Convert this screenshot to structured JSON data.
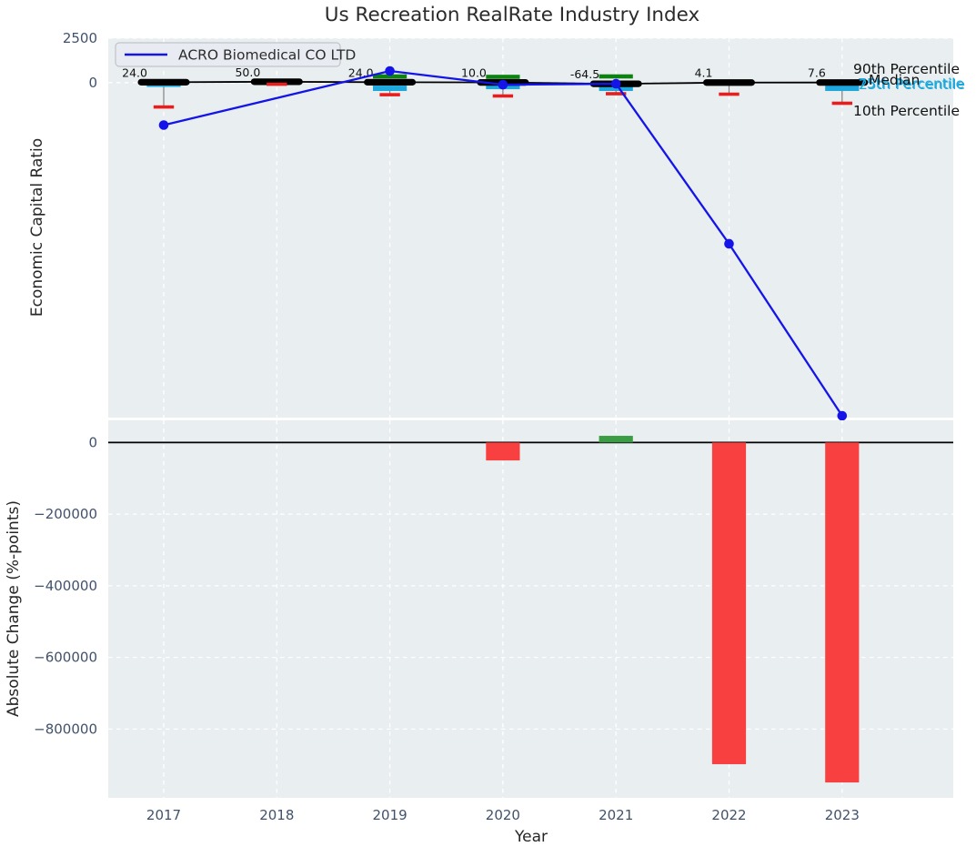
{
  "chart_data": [
    {
      "type": "line",
      "title": "Us Recreation RealRate Industry Index",
      "ylabel": "Economic Capital Ratio",
      "ytick_labels": [
        "2500",
        "0"
      ],
      "ytick_values": [
        2500,
        0
      ],
      "ylim": [
        -18850,
        2500
      ],
      "grid": true,
      "legend_position": "upper left",
      "legend": {
        "label": "ACRO Biomedical CO LTD"
      },
      "years": [
        2017,
        2018,
        2019,
        2020,
        2021,
        2022,
        2023
      ],
      "series": [
        {
          "name": "ACRO Biomedical CO LTD",
          "type": "line+markers",
          "color_key": "company_blue",
          "values": [
            -2390,
            null,
            655,
            -115,
            -64.5,
            -9070,
            -18750
          ]
        }
      ],
      "industry_percentiles": {
        "median_labels": [
          "24.0",
          "50.0",
          "24.0",
          "10.0",
          "-64.5",
          "4.1",
          "7.6"
        ],
        "median": [
          24.0,
          50.0,
          24.0,
          10.0,
          -64.5,
          4.1,
          7.6
        ],
        "p90": [
          null,
          null,
          350,
          325,
          350,
          null,
          null
        ],
        "p75": [
          -90,
          null,
          -165,
          -60,
          -110,
          null,
          -110
        ],
        "p25": [
          -240,
          null,
          -470,
          -370,
          -470,
          null,
          -470
        ],
        "p10": [
          -1370,
          -90,
          -680,
          -750,
          -625,
          -650,
          -1160
        ]
      },
      "annotations": [
        {
          "text": "90th Percentile",
          "color": "#111111"
        },
        {
          "text": "Median",
          "color": "#111111"
        },
        {
          "text": "75th Percentile",
          "color": "#1ea8dc"
        },
        {
          "text": "25th Percentile",
          "color": "#1ea8dc"
        },
        {
          "text": "10th Percentile",
          "color": "#111111"
        }
      ]
    },
    {
      "type": "bar",
      "ylabel": "Absolute Change (%-points)",
      "xlabel": "Year",
      "ytick_labels": [
        "0",
        "−200000",
        "−400000",
        "−600000",
        "−800000"
      ],
      "ytick_values": [
        0,
        -200000,
        -400000,
        -600000,
        -800000
      ],
      "ylim": [
        -992000,
        62000
      ],
      "grid": true,
      "categories": [
        2017,
        2018,
        2019,
        2020,
        2021,
        2022,
        2023
      ],
      "values": [
        null,
        null,
        null,
        -50000,
        18700,
        -898000,
        -949000
      ]
    }
  ],
  "colors": {
    "company_blue": "#1414e8",
    "median_black": "#000000",
    "iqr_cyan": "#1ea8dc",
    "p10_red": "#e81e1e",
    "p90_green": "#0e8211",
    "bar_red": "#f94040",
    "bar_green": "#3a9c43",
    "plot_bg": "#e9eef0",
    "grid_white": "#ffffff",
    "tick_slate": "#42526b",
    "text_dark": "#262626",
    "label_dark": "#111111",
    "whisker_gray": "#808080",
    "legend_fill": "#e9ebf2",
    "legend_border": "#b8bbc2"
  }
}
